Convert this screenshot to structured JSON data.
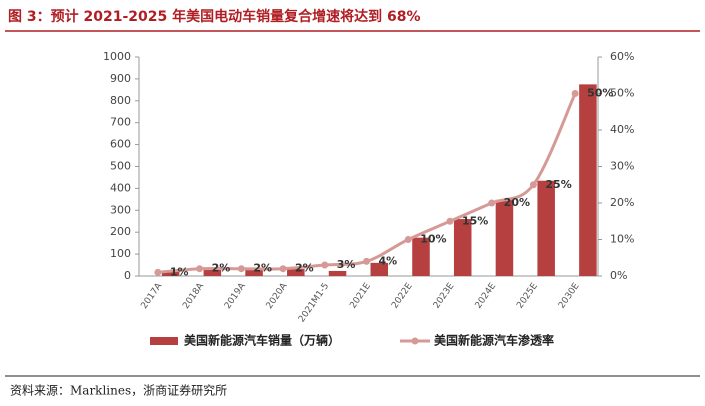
{
  "chart_data": {
    "type": "bar_line",
    "title": "图 3：预计 2021-2025 年美国电动车销量复合增速将达到 68%",
    "source": "资料来源：Marklines，浙商证券研究所",
    "categories": [
      "2017A",
      "2018A",
      "2019A",
      "2020A",
      "2021M1-5",
      "2021E",
      "2022E",
      "2023E",
      "2024E",
      "2025E",
      "2030E"
    ],
    "series": [
      {
        "name": "美国新能源汽车销量（万辆）",
        "color": "#b5403f",
        "type": "bar",
        "values": [
          20,
          36,
          33,
          32,
          23,
          60,
          175,
          260,
          348,
          435,
          875
        ]
      },
      {
        "name": "美国新能源汽车渗透率",
        "color": "#d69a96",
        "type": "line",
        "axis": "y2",
        "values": [
          1,
          2,
          2,
          2,
          3,
          4,
          10,
          15,
          20,
          25,
          50
        ],
        "value_labels": [
          "1%",
          "2%",
          "2%",
          "2%",
          "3%",
          "4%",
          "10%",
          "15%",
          "20%",
          "25%",
          "50%"
        ]
      }
    ],
    "ylim": [
      0,
      1000
    ],
    "yticks": [
      0,
      100,
      200,
      300,
      400,
      500,
      600,
      700,
      800,
      900,
      1000
    ],
    "y2lim": [
      0,
      60
    ],
    "y2ticks": [
      {
        "value": 0,
        "label": "0%"
      },
      {
        "value": 10,
        "label": "10%"
      },
      {
        "value": 20,
        "label": "20%"
      },
      {
        "value": 30,
        "label": "30%"
      },
      {
        "value": 40,
        "label": "40%"
      },
      {
        "value": 50,
        "label": "50%"
      },
      {
        "value": 60,
        "label": "60%"
      }
    ],
    "legend": "bottom"
  }
}
